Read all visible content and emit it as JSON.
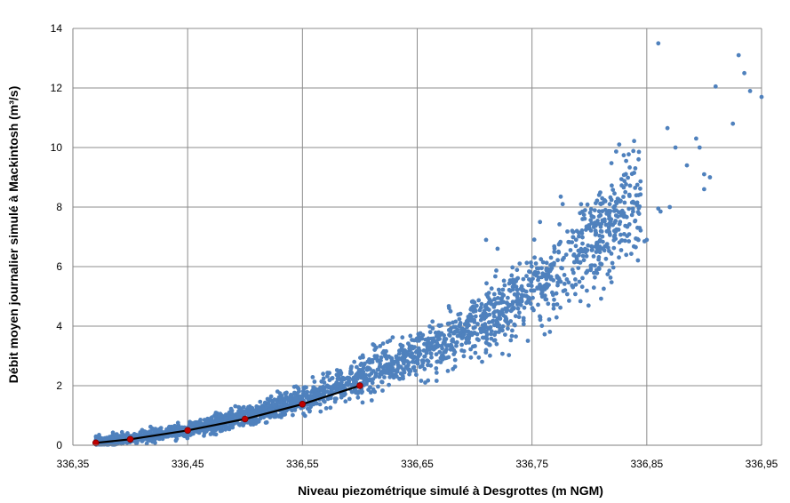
{
  "chart_data": {
    "type": "scatter",
    "xlabel": "Niveau piezométrique simulé à Desgrottes (m NGM)",
    "ylabel": "Débit moyen journalier simulé à Mackintosh (m³/s)",
    "xlim": [
      336.35,
      336.95
    ],
    "ylim": [
      0,
      14
    ],
    "x_ticks": [
      336.35,
      336.45,
      336.55,
      336.65,
      336.75,
      336.85,
      336.95
    ],
    "x_tick_labels": [
      "336,35",
      "336,45",
      "336,55",
      "336,65",
      "336,75",
      "336,85",
      "336,95"
    ],
    "y_ticks": [
      0,
      2,
      4,
      6,
      8,
      10,
      12,
      14
    ],
    "y_tick_labels": [
      "0",
      "2",
      "4",
      "6",
      "8",
      "10",
      "12",
      "14"
    ],
    "grid": true,
    "series": [
      {
        "kind": "scatter",
        "color": "#4F81BD",
        "trend": [
          [
            336.37,
            0.1
          ],
          [
            336.4,
            0.22
          ],
          [
            336.45,
            0.5
          ],
          [
            336.5,
            0.95
          ],
          [
            336.55,
            1.55
          ],
          [
            336.6,
            2.3
          ],
          [
            336.65,
            3.1
          ],
          [
            336.7,
            4.0
          ],
          [
            336.75,
            5.1
          ],
          [
            336.8,
            6.7
          ],
          [
            336.85,
            8.5
          ],
          [
            336.9,
            10.5
          ],
          [
            336.95,
            12.3
          ]
        ],
        "outliers": [
          [
            336.86,
            13.5
          ],
          [
            336.93,
            13.1
          ],
          [
            336.935,
            12.5
          ],
          [
            336.94,
            11.9
          ],
          [
            336.95,
            11.7
          ],
          [
            336.91,
            12.05
          ],
          [
            336.925,
            10.8
          ],
          [
            336.868,
            10.65
          ],
          [
            336.826,
            10.1
          ],
          [
            336.893,
            10.3
          ],
          [
            336.896,
            10.0
          ],
          [
            336.875,
            10.0
          ],
          [
            336.832,
            9.55
          ],
          [
            336.84,
            9.3
          ],
          [
            336.885,
            9.4
          ],
          [
            336.9,
            9.1
          ],
          [
            336.905,
            9.0
          ],
          [
            336.9,
            8.6
          ],
          [
            336.87,
            8.0
          ],
          [
            336.862,
            7.85
          ],
          [
            336.85,
            6.9
          ],
          [
            336.848,
            6.85
          ],
          [
            336.775,
            8.35
          ],
          [
            336.81,
            8.1
          ],
          [
            336.86,
            7.95
          ],
          [
            336.785,
            7.2
          ],
          [
            336.71,
            6.9
          ],
          [
            336.72,
            6.6
          ],
          [
            336.757,
            7.5
          ],
          [
            336.8,
            7.3
          ],
          [
            336.83,
            7.8
          ]
        ]
      },
      {
        "kind": "line",
        "color": "#000000",
        "x": [
          336.37,
          336.4,
          336.45,
          336.5,
          336.55,
          336.6
        ],
        "y": [
          0.08,
          0.2,
          0.5,
          0.88,
          1.38,
          2.0
        ]
      },
      {
        "kind": "markers",
        "color": "#C00000",
        "x": [
          336.37,
          336.4,
          336.45,
          336.5,
          336.55,
          336.6
        ],
        "y": [
          0.08,
          0.2,
          0.5,
          0.88,
          1.38,
          2.0
        ]
      }
    ]
  }
}
